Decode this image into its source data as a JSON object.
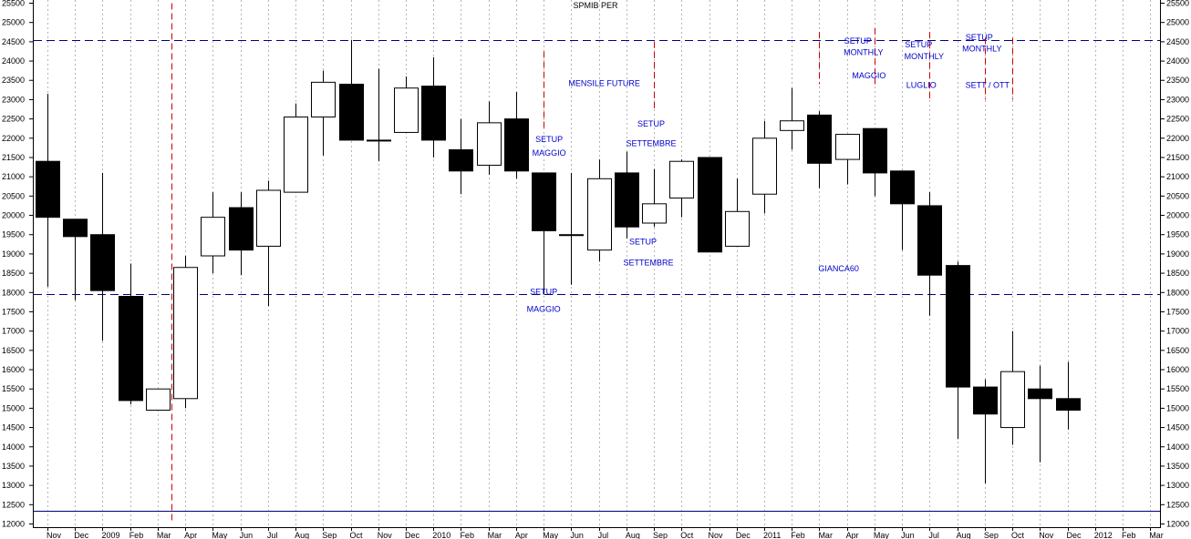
{
  "chart_data": {
    "type": "candlestick",
    "title": "SPMIB PER",
    "ylim": [
      12000,
      25500
    ],
    "y_ticks": [
      12000,
      12500,
      13000,
      13500,
      14000,
      14500,
      15000,
      15500,
      16000,
      16500,
      17000,
      17500,
      18000,
      18500,
      19000,
      19500,
      20000,
      20500,
      21000,
      21500,
      22000,
      22500,
      23000,
      23500,
      24000,
      24500,
      25000,
      25500
    ],
    "x_labels": [
      "Nov",
      "Dec",
      "2009",
      "Feb",
      "Mar",
      "Apr",
      "May",
      "Jun",
      "Jul",
      "Aug",
      "Sep",
      "Oct",
      "Nov",
      "Dec",
      "2010",
      "Feb",
      "Mar",
      "Apr",
      "May",
      "Jun",
      "Jul",
      "Aug",
      "Sep",
      "Oct",
      "Nov",
      "Dec",
      "2011",
      "Feb",
      "Mar",
      "Apr",
      "May",
      "Jun",
      "Jul",
      "Aug",
      "Sep",
      "Oct",
      "Nov",
      "Dec",
      "2012",
      "Feb",
      "Mar"
    ],
    "candles": [
      {
        "o": 21400,
        "h": 23150,
        "l": 18150,
        "c": 19950
      },
      {
        "o": 19900,
        "h": 19900,
        "l": 17800,
        "c": 19450
      },
      {
        "o": 19500,
        "h": 21100,
        "l": 16750,
        "c": 18050
      },
      {
        "o": 17900,
        "h": 18750,
        "l": 15100,
        "c": 15200
      },
      {
        "o": 14950,
        "h": 15500,
        "l": 14950,
        "c": 15500
      },
      {
        "o": 15250,
        "h": 18950,
        "l": 15000,
        "c": 18650
      },
      {
        "o": 18950,
        "h": 20600,
        "l": 18500,
        "c": 19950
      },
      {
        "o": 20200,
        "h": 20600,
        "l": 18450,
        "c": 19100
      },
      {
        "o": 19200,
        "h": 20900,
        "l": 17650,
        "c": 20650
      },
      {
        "o": 20600,
        "h": 22900,
        "l": 20600,
        "c": 22550
      },
      {
        "o": 22550,
        "h": 23750,
        "l": 21550,
        "c": 23450
      },
      {
        "o": 23400,
        "h": 24550,
        "l": 21950,
        "c": 21950
      },
      {
        "o": 21950,
        "h": 23800,
        "l": 21400,
        "c": 21950
      },
      {
        "o": 22150,
        "h": 23600,
        "l": 22150,
        "c": 23300
      },
      {
        "o": 23350,
        "h": 24100,
        "l": 21500,
        "c": 21950
      },
      {
        "o": 21700,
        "h": 22500,
        "l": 20550,
        "c": 21150
      },
      {
        "o": 21300,
        "h": 22950,
        "l": 21050,
        "c": 22400
      },
      {
        "o": 22500,
        "h": 23200,
        "l": 20950,
        "c": 21150
      },
      {
        "o": 21100,
        "h": 21100,
        "l": 17950,
        "c": 19600
      },
      {
        "o": 19500,
        "h": 21100,
        "l": 18200,
        "c": 19500
      },
      {
        "o": 19100,
        "h": 21450,
        "l": 18800,
        "c": 20950
      },
      {
        "o": 21100,
        "h": 21650,
        "l": 19400,
        "c": 19700
      },
      {
        "o": 19800,
        "h": 21200,
        "l": 19700,
        "c": 20300
      },
      {
        "o": 20450,
        "h": 21450,
        "l": 19950,
        "c": 21400
      },
      {
        "o": 21500,
        "h": 21500,
        "l": 19050,
        "c": 19050
      },
      {
        "o": 19200,
        "h": 20950,
        "l": 19200,
        "c": 20100
      },
      {
        "o": 20550,
        "h": 22450,
        "l": 20050,
        "c": 22000
      },
      {
        "o": 22200,
        "h": 23300,
        "l": 21700,
        "c": 22450
      },
      {
        "o": 22600,
        "h": 22700,
        "l": 20700,
        "c": 21350
      },
      {
        "o": 21450,
        "h": 22100,
        "l": 20800,
        "c": 22100
      },
      {
        "o": 22250,
        "h": 22250,
        "l": 20500,
        "c": 21100
      },
      {
        "o": 21150,
        "h": 21150,
        "l": 19100,
        "c": 20300
      },
      {
        "o": 20250,
        "h": 20600,
        "l": 17400,
        "c": 18450
      },
      {
        "o": 18700,
        "h": 18800,
        "l": 14200,
        "c": 15550
      },
      {
        "o": 15550,
        "h": 15750,
        "l": 13050,
        "c": 14850
      },
      {
        "o": 14500,
        "h": 17000,
        "l": 14050,
        "c": 15950
      },
      {
        "o": 15500,
        "h": 16100,
        "l": 13600,
        "c": 15250
      },
      {
        "o": 15250,
        "h": 16200,
        "l": 14450,
        "c": 14950
      }
    ],
    "horizontal_lines": [
      {
        "value": 24550,
        "style": "dashed",
        "color": "#000080"
      },
      {
        "value": 17950,
        "style": "dashed",
        "color": "#000080"
      },
      {
        "value": 12350,
        "style": "solid",
        "color": "#000080"
      }
    ],
    "vertical_markers": [
      {
        "index": 4.5,
        "from": 12000,
        "to": 25500
      },
      {
        "index": 18.0,
        "from": 22200,
        "to": 24250
      },
      {
        "index": 22.0,
        "from": 22700,
        "to": 24500
      },
      {
        "index": 28.0,
        "from": 23400,
        "to": 24750
      },
      {
        "index": 30.0,
        "from": 23400,
        "to": 24850
      },
      {
        "index": 32.0,
        "from": 23000,
        "to": 24750
      },
      {
        "index": 34.0,
        "from": 23000,
        "to": 24600
      },
      {
        "index": 35.0,
        "from": 23000,
        "to": 24600
      }
    ],
    "annotations": [
      {
        "text": "SETUP",
        "index": 18.2,
        "value": 21900
      },
      {
        "text": "MAGGIO",
        "index": 18.2,
        "value": 21550
      },
      {
        "text": "SETUP",
        "index": 18.0,
        "value": 17950
      },
      {
        "text": "MAGGIO",
        "index": 18.0,
        "value": 17500
      },
      {
        "text": "MENSILE FUTURE",
        "index": 20.2,
        "value": 23350
      },
      {
        "text": "SETUP",
        "index": 21.9,
        "value": 22300
      },
      {
        "text": "SETTEMBRE",
        "index": 21.9,
        "value": 21800
      },
      {
        "text": "SETUP",
        "index": 21.6,
        "value": 19250
      },
      {
        "text": "SETTEMBRE",
        "index": 21.8,
        "value": 18700
      },
      {
        "text": "SETUP",
        "index": 29.4,
        "value": 24450
      },
      {
        "text": "MONTHLY",
        "index": 29.6,
        "value": 24150
      },
      {
        "text": "MAGGIO",
        "index": 29.8,
        "value": 23550
      },
      {
        "text": "GIANCA60",
        "index": 28.7,
        "value": 18550
      },
      {
        "text": "SETUP",
        "index": 31.6,
        "value": 24350
      },
      {
        "text": "MONTHLY",
        "index": 31.8,
        "value": 24050
      },
      {
        "text": "LUGLIO",
        "index": 31.7,
        "value": 23300
      },
      {
        "text": "SETUP",
        "index": 33.8,
        "value": 24550
      },
      {
        "text": "MONTHLY",
        "index": 33.9,
        "value": 24250
      },
      {
        "text": "SETT / OTT",
        "index": 34.1,
        "value": 23300
      }
    ]
  }
}
